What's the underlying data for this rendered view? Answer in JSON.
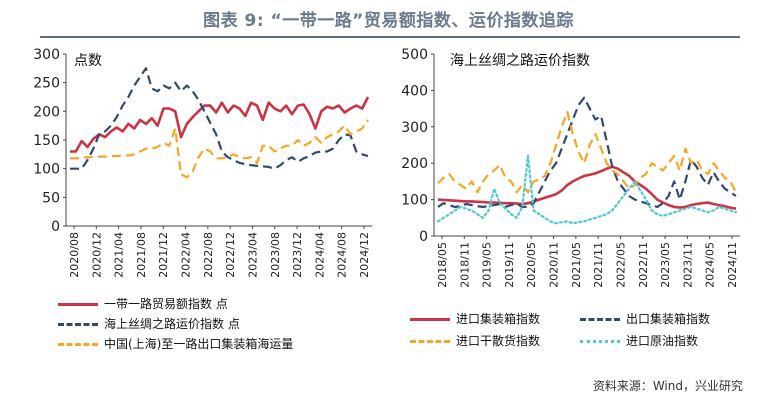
{
  "figure_title": "图表 9:  “一带一路”贸易额指数、运价指数追踪",
  "source": "资料来源：Wind，兴业研究",
  "chart_data": [
    {
      "type": "line",
      "title": "点数",
      "ylim": [
        0,
        300
      ],
      "yticks": [
        "0",
        "50",
        "100",
        "150",
        "200",
        "250",
        "300"
      ],
      "tick_labels": [
        "2020/08",
        "2020/12",
        "2021/04",
        "2021/08",
        "2021/12",
        "2022/04",
        "2022/08",
        "2022/12",
        "2023/04",
        "2023/08",
        "2023/12",
        "2024/04",
        "2024/08",
        "2024/12"
      ],
      "grid": false,
      "legend_position": "bottom",
      "series": [
        {
          "name": "一带一路贸易额指数  点",
          "color": "#cc3344",
          "style": "solid",
          "values": [
            130,
            130,
            148,
            138,
            152,
            160,
            155,
            165,
            172,
            165,
            178,
            170,
            185,
            178,
            188,
            175,
            205,
            205,
            200,
            155,
            178,
            190,
            200,
            210,
            210,
            198,
            215,
            198,
            210,
            205,
            192,
            215,
            210,
            185,
            215,
            205,
            200,
            210,
            195,
            210,
            212,
            195,
            170,
            200,
            208,
            205,
            210,
            198,
            205,
            210,
            205,
            225
          ]
        },
        {
          "name": "海上丝绸之路运价指数  点",
          "color": "#2e4a6e",
          "style": "dash",
          "values": [
            100,
            100,
            100,
            115,
            135,
            160,
            165,
            175,
            190,
            210,
            225,
            245,
            260,
            275,
            240,
            235,
            245,
            240,
            250,
            235,
            245,
            235,
            220,
            200,
            180,
            160,
            130,
            120,
            115,
            110,
            108,
            106,
            105,
            104,
            103,
            100,
            106,
            115,
            120,
            112,
            118,
            122,
            128,
            130,
            130,
            135,
            150,
            160,
            158,
            130,
            125,
            122
          ]
        },
        {
          "name": "中国(上海)至一路出口集装箱海运量",
          "color": "#f5a623",
          "style": "dash",
          "values": [
            118,
            118,
            119,
            120,
            120,
            121,
            121,
            122,
            122,
            123,
            123,
            125,
            130,
            135,
            135,
            138,
            145,
            140,
            170,
            90,
            85,
            95,
            120,
            135,
            130,
            118,
            118,
            120,
            125,
            120,
            118,
            120,
            110,
            140,
            140,
            130,
            135,
            140,
            140,
            150,
            140,
            145,
            155,
            145,
            155,
            160,
            165,
            175,
            160,
            165,
            170,
            185
          ]
        }
      ]
    },
    {
      "type": "line",
      "title": "海上丝绸之路运价指数",
      "ylim": [
        0,
        500
      ],
      "yticks": [
        "0",
        "100",
        "200",
        "300",
        "400",
        "500"
      ],
      "tick_labels": [
        "2018/05",
        "2018/11",
        "2019/05",
        "2019/11",
        "2020/05",
        "2020/11",
        "2021/05",
        "2021/11",
        "2022/05",
        "2022/11",
        "2023/05",
        "2023/11",
        "2024/05",
        "2024/11"
      ],
      "grid": false,
      "legend_position": "bottom",
      "series": [
        {
          "name": "进口集装箱指数",
          "color": "#cc3344",
          "style": "solid",
          "values": [
            100,
            99,
            98,
            97,
            96,
            95,
            95,
            94,
            93,
            92,
            92,
            91,
            90,
            90,
            89,
            88,
            90,
            95,
            100,
            105,
            110,
            115,
            125,
            140,
            150,
            158,
            165,
            168,
            172,
            178,
            185,
            190,
            185,
            175,
            165,
            150,
            140,
            130,
            115,
            100,
            92,
            85,
            80,
            78,
            80,
            85,
            88,
            90,
            92,
            88,
            85,
            82,
            78,
            75
          ]
        },
        {
          "name": "出口集装箱指数",
          "color": "#2e4a6e",
          "style": "dash",
          "values": [
            80,
            90,
            85,
            80,
            82,
            88,
            85,
            82,
            80,
            82,
            85,
            88,
            80,
            85,
            88,
            80,
            80,
            90,
            120,
            150,
            180,
            200,
            240,
            280,
            320,
            360,
            380,
            350,
            320,
            330,
            260,
            190,
            150,
            130,
            110,
            100,
            95,
            90,
            85,
            80,
            90,
            110,
            150,
            100,
            150,
            210,
            190,
            160,
            140,
            175,
            150,
            130,
            120,
            110
          ]
        },
        {
          "name": "进口干散货指数",
          "color": "#f5a623",
          "style": "dash",
          "values": [
            145,
            160,
            170,
            150,
            140,
            130,
            150,
            120,
            150,
            170,
            180,
            195,
            160,
            150,
            120,
            140,
            120,
            150,
            155,
            165,
            200,
            250,
            300,
            340,
            280,
            230,
            200,
            250,
            280,
            240,
            200,
            180,
            170,
            150,
            130,
            140,
            160,
            170,
            200,
            190,
            180,
            200,
            220,
            180,
            240,
            200,
            210,
            180,
            170,
            200,
            180,
            160,
            150,
            120
          ]
        },
        {
          "name": "进口原油指数",
          "color": "#4dc8d6",
          "style": "dot",
          "values": [
            40,
            50,
            60,
            70,
            80,
            75,
            70,
            60,
            50,
            70,
            130,
            90,
            75,
            60,
            50,
            80,
            220,
            70,
            60,
            50,
            40,
            35,
            38,
            40,
            35,
            38,
            40,
            45,
            50,
            55,
            60,
            70,
            90,
            110,
            130,
            150,
            125,
            100,
            70,
            60,
            55,
            60,
            65,
            70,
            75,
            80,
            75,
            70,
            65,
            70,
            80,
            75,
            70,
            65
          ]
        }
      ]
    }
  ]
}
